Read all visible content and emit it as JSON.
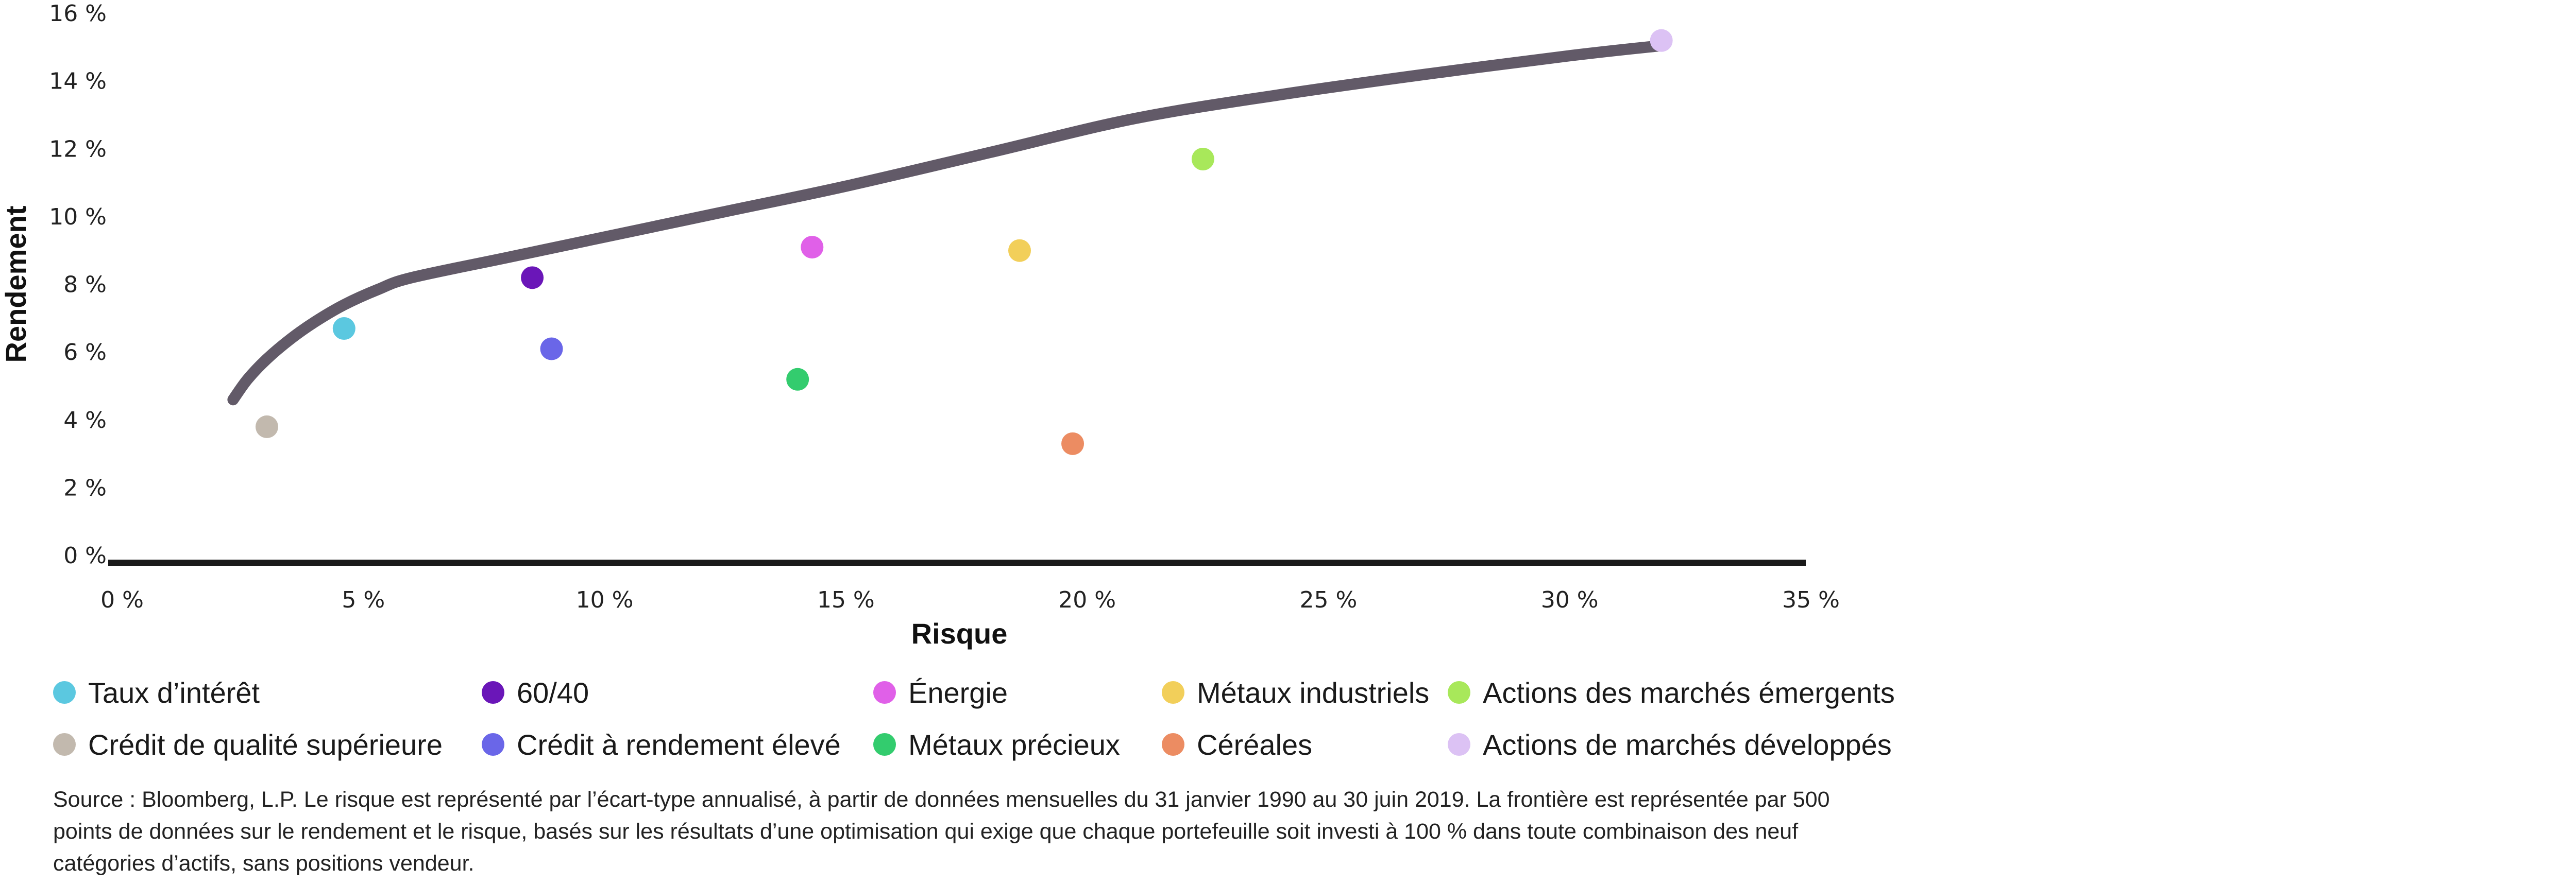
{
  "chart_data": {
    "type": "scatter",
    "title": "",
    "xlabel": "Risque",
    "ylabel": "Rendement",
    "xlim": [
      0,
      35
    ],
    "ylim": [
      0,
      16
    ],
    "x_ticks": [
      0,
      5,
      10,
      15,
      20,
      25,
      30,
      35
    ],
    "y_ticks": [
      0,
      2,
      4,
      6,
      8,
      10,
      12,
      14,
      16
    ],
    "x_tick_labels": [
      "0 %",
      "5 %",
      "10 %",
      "15 %",
      "20 %",
      "25 %",
      "30 %",
      "35 %"
    ],
    "y_tick_labels": [
      "0 %",
      "2 %",
      "4 %",
      "6 %",
      "8 %",
      "10 %",
      "12 %",
      "14 %",
      "16 %"
    ],
    "series": [
      {
        "name": "Taux d’intérêt",
        "color": "#5bc8e0",
        "x": 4.6,
        "y": 6.7
      },
      {
        "name": "Crédit de qualité supérieure",
        "color": "#c2b9ae",
        "x": 3.0,
        "y": 3.8
      },
      {
        "name": "60/40",
        "color": "#6a16b8",
        "x": 8.5,
        "y": 8.2
      },
      {
        "name": "Crédit à rendement élevé",
        "color": "#6a66e8",
        "x": 8.9,
        "y": 6.1
      },
      {
        "name": "Énergie",
        "color": "#e060e8",
        "x": 14.3,
        "y": 9.1
      },
      {
        "name": "Métaux précieux",
        "color": "#33cc6e",
        "x": 14.0,
        "y": 5.2
      },
      {
        "name": "Métaux industriels",
        "color": "#f2cf5a",
        "x": 18.6,
        "y": 9.0
      },
      {
        "name": "Céréales",
        "color": "#ec8c62",
        "x": 19.7,
        "y": 3.3
      },
      {
        "name": "Actions des marchés émergents",
        "color": "#a8e85a",
        "x": 22.4,
        "y": 11.7
      },
      {
        "name": "Actions de marchés développés",
        "color": "#dcc2f4",
        "x": 31.9,
        "y": 15.2
      }
    ],
    "frontier": {
      "color": "#625a68",
      "points": [
        [
          2.3,
          4.6
        ],
        [
          2.6,
          5.2
        ],
        [
          3.0,
          5.8
        ],
        [
          3.5,
          6.4
        ],
        [
          4.0,
          6.9
        ],
        [
          4.6,
          7.4
        ],
        [
          5.3,
          7.85
        ],
        [
          6.0,
          8.2
        ],
        [
          8.0,
          8.8
        ],
        [
          10.0,
          9.4
        ],
        [
          12.5,
          10.15
        ],
        [
          15.0,
          10.9
        ],
        [
          18.0,
          11.9
        ],
        [
          21.0,
          12.9
        ],
        [
          24.0,
          13.6
        ],
        [
          27.0,
          14.2
        ],
        [
          30.0,
          14.75
        ],
        [
          31.9,
          15.05
        ]
      ]
    },
    "legend": {
      "placement": "bottom",
      "rows": [
        [
          "Taux d’intérêt",
          "60/40",
          "Énergie",
          "Métaux industriels",
          "Actions des marchés émergents"
        ],
        [
          "Crédit de qualité supérieure",
          "Crédit à rendement élevé",
          "Métaux précieux",
          "Céréales",
          "Actions de marchés développés"
        ]
      ]
    },
    "axis_color": "#1a1a1a"
  },
  "source_note": "Source : Bloomberg, L.P. Le risque est représenté par l’écart-type annualisé, à partir de données mensuelles du 31 janvier 1990 au 30 juin 2019. La frontière est représentée par 500 points de données sur le rendement et le risque, basés sur les résultats d’une optimisation qui exige que chaque portefeuille soit investi à 100 % dans toute combinaison des neuf catégories d’actifs, sans positions vendeur."
}
